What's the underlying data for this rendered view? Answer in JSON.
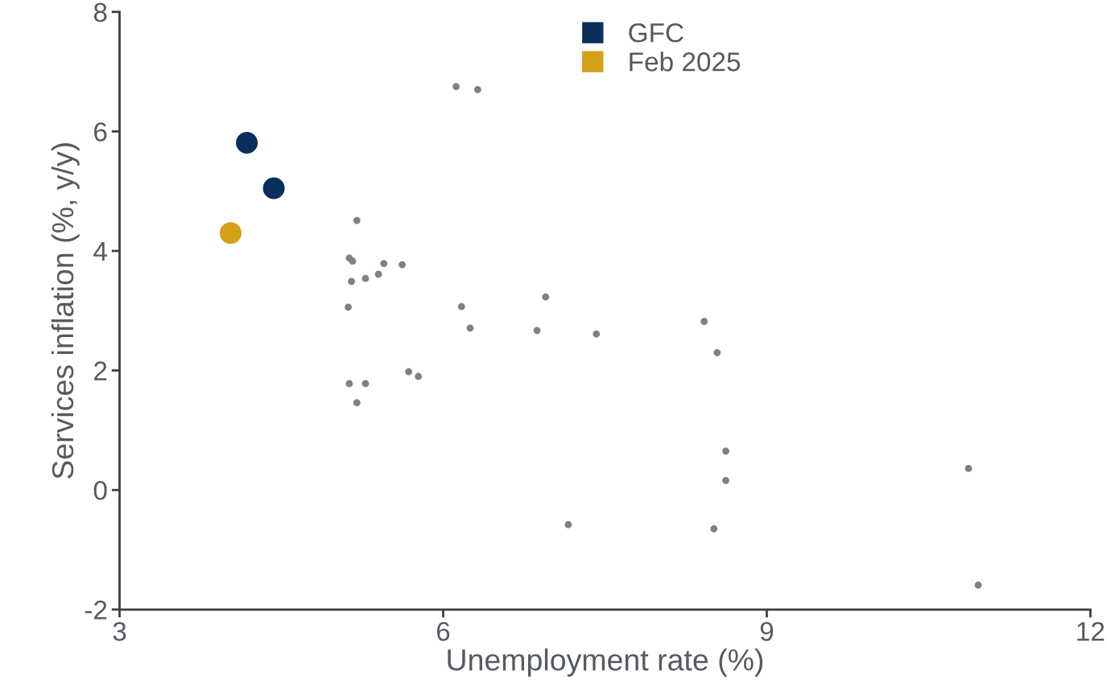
{
  "chart_data": {
    "type": "scatter",
    "xlabel": "Unemployment rate (%)",
    "ylabel": "Services inflation (%, y/y)",
    "xlim": [
      3,
      12
    ],
    "xticks": [
      3,
      6,
      9,
      12
    ],
    "ylim": [
      -2,
      8
    ],
    "yticks": [
      -2,
      0,
      2,
      4,
      6,
      8
    ],
    "grid": false,
    "legend": "top",
    "marker": "circle",
    "series": [
      {
        "color": "#808080",
        "x": [
          6.12,
          6.32,
          5.2,
          5.13,
          5.16,
          5.45,
          5.62,
          5.4,
          5.28,
          5.15,
          5.12,
          6.17,
          6.95,
          6.25,
          6.87,
          7.42,
          8.42,
          8.54,
          5.68,
          5.77,
          5.13,
          5.28,
          5.2,
          8.62,
          8.62,
          10.87,
          7.16,
          8.51,
          10.96
        ],
        "values": [
          6.75,
          6.7,
          4.51,
          3.88,
          3.83,
          3.79,
          3.77,
          3.61,
          3.54,
          3.49,
          3.06,
          3.07,
          3.23,
          2.71,
          2.67,
          2.61,
          2.82,
          2.3,
          1.98,
          1.9,
          1.78,
          1.78,
          1.46,
          0.65,
          0.16,
          0.36,
          -0.58,
          -0.65,
          -1.59
        ]
      },
      {
        "name": "GFC",
        "color": "#0a2f5c",
        "x": [
          4.18,
          4.43
        ],
        "values": [
          5.81,
          5.05
        ]
      },
      {
        "name": "Feb 2025",
        "color": "#d4a017",
        "x": [
          4.03
        ],
        "values": [
          4.3
        ]
      }
    ]
  }
}
